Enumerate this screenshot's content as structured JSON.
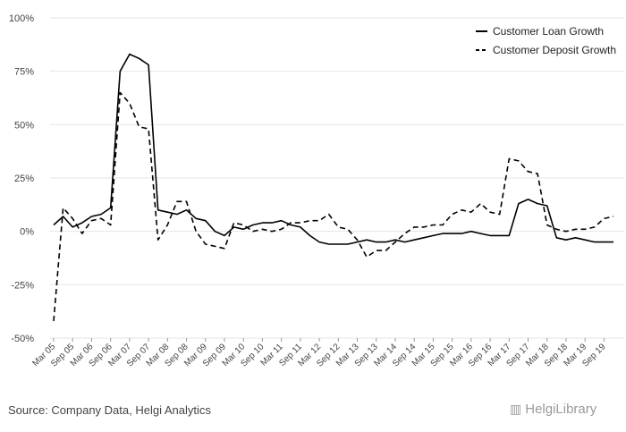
{
  "chart_data": {
    "type": "line",
    "title": "",
    "xlabel": "",
    "ylabel": "",
    "ylim": [
      -50,
      100
    ],
    "yticks": [
      -50,
      -25,
      0,
      25,
      50,
      75,
      100
    ],
    "ytick_labels": [
      "-50%",
      "-25%",
      "0%",
      "25%",
      "50%",
      "75%",
      "100%"
    ],
    "x_count": 60,
    "xtick_labels": [
      "Mar 05",
      "Sep 05",
      "Mar 06",
      "Sep 06",
      "Mar 07",
      "Sep 07",
      "Mar 08",
      "Sep 08",
      "Mar 09",
      "Sep 09",
      "Mar 10",
      "Sep 10",
      "Mar 11",
      "Sep 11",
      "Mar 12",
      "Sep 12",
      "Mar 13",
      "Sep 13",
      "Mar 14",
      "Sep 14",
      "Mar 15",
      "Sep 15",
      "Mar 16",
      "Sep 16",
      "Mar 17",
      "Sep 17",
      "Mar 18",
      "Sep 18",
      "Mar 19",
      "Sep 19"
    ],
    "grid": true,
    "legend_position": "top-right",
    "series": [
      {
        "name": "Customer Loan Growth",
        "dash": "solid",
        "values": [
          3,
          7,
          2,
          4,
          7,
          8,
          11,
          75,
          83,
          81,
          78,
          10,
          9,
          8,
          10,
          6,
          5,
          0,
          -2,
          2,
          1,
          3,
          4,
          4,
          5,
          3,
          2,
          -2,
          -5,
          -6,
          -6,
          -6,
          -5,
          -4,
          -5,
          -5,
          -4,
          -5,
          -4,
          -3,
          -2,
          -1,
          -1,
          -1,
          0,
          -1,
          -2,
          -2,
          -2,
          13,
          15,
          13,
          12,
          -3,
          -4,
          -3,
          -4,
          -5,
          -5,
          -5
        ]
      },
      {
        "name": "Customer Deposit Growth",
        "dash": "dashed",
        "values": [
          -42,
          11,
          6,
          -1,
          5,
          6,
          3,
          65,
          60,
          49,
          48,
          -4,
          3,
          14,
          14,
          0,
          -6,
          -7,
          -8,
          4,
          3,
          0,
          1,
          0,
          1,
          4,
          4,
          5,
          5,
          8,
          2,
          1,
          -4,
          -12,
          -9,
          -9,
          -5,
          -1,
          2,
          2,
          3,
          3,
          8,
          10,
          9,
          13,
          9,
          8,
          34,
          33,
          28,
          27,
          3,
          1,
          0,
          1,
          1,
          2,
          6,
          7
        ]
      }
    ]
  },
  "footer": {
    "source": "Source: Company Data, Helgi Analytics",
    "logo": "HelgiLibrary"
  }
}
